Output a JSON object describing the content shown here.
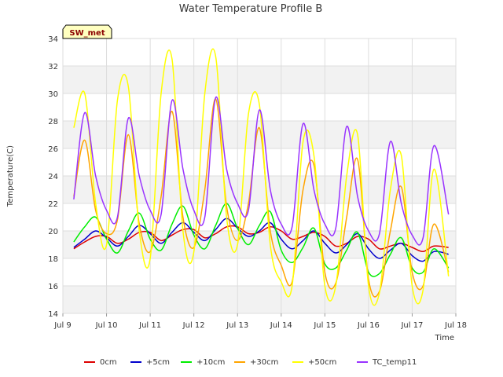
{
  "chart_data": {
    "type": "line",
    "title": "Water Temperature Profile B",
    "xlabel": "Time",
    "ylabel": "Temperature(C)",
    "badge": "SW_met",
    "ylim": [
      14,
      34
    ],
    "yticks": [
      14,
      16,
      18,
      20,
      22,
      24,
      26,
      28,
      30,
      32,
      34
    ],
    "xlim": [
      "2024-07-09",
      "2024-07-18"
    ],
    "xticks": [
      "Jul 9",
      "Jul 10",
      "Jul 11",
      "Jul 12",
      "Jul 13",
      "Jul 14",
      "Jul 15",
      "Jul 16",
      "Jul 17",
      "Jul 18"
    ],
    "grid": true,
    "legend_position": "bottom",
    "series": [
      {
        "name": "0cm",
        "color": "#dd0000",
        "x": [
          "2024-07-09 06:00",
          "2024-07-09 12:00",
          "2024-07-09 18:00",
          "2024-07-10 00:00",
          "2024-07-10 06:00",
          "2024-07-10 12:00",
          "2024-07-10 18:00",
          "2024-07-11 00:00",
          "2024-07-11 06:00",
          "2024-07-11 12:00",
          "2024-07-11 18:00",
          "2024-07-12 00:00",
          "2024-07-12 06:00",
          "2024-07-12 12:00",
          "2024-07-12 18:00",
          "2024-07-13 00:00",
          "2024-07-13 06:00",
          "2024-07-13 12:00",
          "2024-07-13 18:00",
          "2024-07-14 00:00",
          "2024-07-14 06:00",
          "2024-07-14 12:00",
          "2024-07-14 18:00",
          "2024-07-15 00:00",
          "2024-07-15 06:00",
          "2024-07-15 12:00",
          "2024-07-15 18:00",
          "2024-07-16 00:00",
          "2024-07-16 06:00",
          "2024-07-16 12:00",
          "2024-07-16 18:00",
          "2024-07-17 00:00",
          "2024-07-17 06:00",
          "2024-07-17 12:00",
          "2024-07-17 20:00"
        ],
        "y": [
          18.7,
          19.2,
          19.6,
          19.6,
          19.1,
          19.4,
          19.9,
          19.9,
          19.3,
          19.7,
          20.1,
          20.1,
          19.5,
          19.8,
          20.3,
          20.3,
          19.8,
          19.9,
          20.3,
          20.0,
          19.4,
          19.6,
          19.9,
          19.6,
          18.9,
          19.1,
          19.6,
          19.4,
          18.7,
          18.9,
          19.1,
          18.8,
          18.5,
          18.9,
          18.8
        ]
      },
      {
        "name": "+5cm",
        "color": "#0000cc",
        "x": [
          "2024-07-09 06:00",
          "2024-07-09 12:00",
          "2024-07-09 18:00",
          "2024-07-10 00:00",
          "2024-07-10 06:00",
          "2024-07-10 12:00",
          "2024-07-10 18:00",
          "2024-07-11 00:00",
          "2024-07-11 06:00",
          "2024-07-11 12:00",
          "2024-07-11 18:00",
          "2024-07-12 00:00",
          "2024-07-12 06:00",
          "2024-07-12 12:00",
          "2024-07-12 18:00",
          "2024-07-13 00:00",
          "2024-07-13 06:00",
          "2024-07-13 12:00",
          "2024-07-13 18:00",
          "2024-07-14 00:00",
          "2024-07-14 06:00",
          "2024-07-14 12:00",
          "2024-07-14 18:00",
          "2024-07-15 00:00",
          "2024-07-15 06:00",
          "2024-07-15 12:00",
          "2024-07-15 18:00",
          "2024-07-16 00:00",
          "2024-07-16 06:00",
          "2024-07-16 12:00",
          "2024-07-16 18:00",
          "2024-07-17 00:00",
          "2024-07-17 06:00",
          "2024-07-17 12:00",
          "2024-07-17 20:00"
        ],
        "y": [
          18.8,
          19.4,
          20.0,
          19.5,
          18.9,
          19.6,
          20.4,
          19.8,
          19.1,
          19.9,
          20.6,
          19.9,
          19.3,
          20.1,
          20.9,
          20.2,
          19.6,
          20.0,
          20.6,
          19.4,
          18.7,
          19.3,
          20.0,
          19.1,
          18.4,
          19.0,
          19.8,
          18.7,
          18.0,
          18.6,
          19.1,
          18.2,
          17.8,
          18.5,
          18.3
        ]
      },
      {
        "name": "+10cm",
        "color": "#00ee00",
        "x": [
          "2024-07-09 06:00",
          "2024-07-09 12:00",
          "2024-07-09 18:00",
          "2024-07-10 00:00",
          "2024-07-10 06:00",
          "2024-07-10 12:00",
          "2024-07-10 18:00",
          "2024-07-11 00:00",
          "2024-07-11 06:00",
          "2024-07-11 12:00",
          "2024-07-11 18:00",
          "2024-07-12 00:00",
          "2024-07-12 06:00",
          "2024-07-12 12:00",
          "2024-07-12 18:00",
          "2024-07-13 00:00",
          "2024-07-13 06:00",
          "2024-07-13 12:00",
          "2024-07-13 18:00",
          "2024-07-14 00:00",
          "2024-07-14 06:00",
          "2024-07-14 12:00",
          "2024-07-14 18:00",
          "2024-07-15 00:00",
          "2024-07-15 06:00",
          "2024-07-15 12:00",
          "2024-07-15 18:00",
          "2024-07-16 00:00",
          "2024-07-16 06:00",
          "2024-07-16 12:00",
          "2024-07-16 18:00",
          "2024-07-17 00:00",
          "2024-07-17 06:00",
          "2024-07-17 12:00",
          "2024-07-17 20:00"
        ],
        "y": [
          19.2,
          20.3,
          21.0,
          19.4,
          18.4,
          20.0,
          21.3,
          19.4,
          18.6,
          20.5,
          21.8,
          19.7,
          18.7,
          20.4,
          22.0,
          20.2,
          19.0,
          20.4,
          21.4,
          18.6,
          17.7,
          18.8,
          20.2,
          17.6,
          17.3,
          18.6,
          19.9,
          17.0,
          16.9,
          18.3,
          19.5,
          17.3,
          17.0,
          18.7,
          17.3
        ]
      },
      {
        "name": "+30cm",
        "color": "#ffa500",
        "x": [
          "2024-07-09 06:00",
          "2024-07-09 12:00",
          "2024-07-09 18:00",
          "2024-07-10 00:00",
          "2024-07-10 06:00",
          "2024-07-10 12:00",
          "2024-07-10 18:00",
          "2024-07-11 00:00",
          "2024-07-11 06:00",
          "2024-07-11 12:00",
          "2024-07-11 18:00",
          "2024-07-12 00:00",
          "2024-07-12 06:00",
          "2024-07-12 12:00",
          "2024-07-12 18:00",
          "2024-07-13 00:00",
          "2024-07-13 06:00",
          "2024-07-13 12:00",
          "2024-07-13 18:00",
          "2024-07-14 00:00",
          "2024-07-14 06:00",
          "2024-07-14 12:00",
          "2024-07-14 18:00",
          "2024-07-15 00:00",
          "2024-07-15 06:00",
          "2024-07-15 12:00",
          "2024-07-15 18:00",
          "2024-07-16 00:00",
          "2024-07-16 06:00",
          "2024-07-16 12:00",
          "2024-07-16 18:00",
          "2024-07-17 00:00",
          "2024-07-17 06:00",
          "2024-07-17 12:00",
          "2024-07-17 20:00"
        ],
        "y": [
          22.5,
          26.6,
          21.5,
          19.8,
          20.8,
          27.0,
          20.5,
          18.5,
          22.5,
          28.7,
          21.0,
          18.8,
          23.0,
          29.6,
          21.8,
          19.3,
          22.0,
          27.5,
          20.0,
          17.5,
          16.3,
          23.0,
          24.8,
          17.0,
          16.2,
          21.0,
          25.2,
          16.5,
          15.6,
          20.0,
          23.2,
          17.0,
          16.0,
          20.5,
          17.0
        ]
      },
      {
        "name": "+50cm",
        "color": "#ffff00",
        "x": [
          "2024-07-09 06:00",
          "2024-07-09 12:00",
          "2024-07-09 18:00",
          "2024-07-10 00:00",
          "2024-07-10 06:00",
          "2024-07-10 12:00",
          "2024-07-10 18:00",
          "2024-07-11 00:00",
          "2024-07-11 06:00",
          "2024-07-11 12:00",
          "2024-07-11 18:00",
          "2024-07-12 00:00",
          "2024-07-12 06:00",
          "2024-07-12 12:00",
          "2024-07-12 18:00",
          "2024-07-13 00:00",
          "2024-07-13 06:00",
          "2024-07-13 12:00",
          "2024-07-13 18:00",
          "2024-07-14 00:00",
          "2024-07-14 06:00",
          "2024-07-14 12:00",
          "2024-07-14 18:00",
          "2024-07-15 00:00",
          "2024-07-15 06:00",
          "2024-07-15 12:00",
          "2024-07-15 18:00",
          "2024-07-16 00:00",
          "2024-07-16 06:00",
          "2024-07-16 12:00",
          "2024-07-16 18:00",
          "2024-07-17 00:00",
          "2024-07-17 06:00",
          "2024-07-17 12:00",
          "2024-07-17 20:00"
        ],
        "y": [
          27.5,
          30.0,
          22.0,
          19.0,
          29.5,
          30.5,
          20.0,
          18.0,
          30.0,
          32.5,
          20.0,
          18.5,
          30.0,
          32.7,
          21.0,
          19.0,
          28.5,
          29.2,
          19.0,
          16.3,
          16.0,
          26.5,
          25.5,
          16.0,
          16.0,
          24.0,
          27.0,
          16.0,
          15.5,
          23.0,
          25.5,
          16.0,
          15.7,
          24.5,
          16.7
        ]
      },
      {
        "name": "TC_temp11",
        "color": "#9933ff",
        "x": [
          "2024-07-09 06:00",
          "2024-07-09 12:00",
          "2024-07-09 18:00",
          "2024-07-10 00:00",
          "2024-07-10 06:00",
          "2024-07-10 12:00",
          "2024-07-10 18:00",
          "2024-07-11 00:00",
          "2024-07-11 06:00",
          "2024-07-11 12:00",
          "2024-07-11 18:00",
          "2024-07-12 00:00",
          "2024-07-12 06:00",
          "2024-07-12 12:00",
          "2024-07-12 18:00",
          "2024-07-13 00:00",
          "2024-07-13 06:00",
          "2024-07-13 12:00",
          "2024-07-13 18:00",
          "2024-07-14 00:00",
          "2024-07-14 06:00",
          "2024-07-14 12:00",
          "2024-07-14 18:00",
          "2024-07-15 00:00",
          "2024-07-15 06:00",
          "2024-07-15 12:00",
          "2024-07-15 18:00",
          "2024-07-16 00:00",
          "2024-07-16 06:00",
          "2024-07-16 12:00",
          "2024-07-16 18:00",
          "2024-07-17 00:00",
          "2024-07-17 06:00",
          "2024-07-17 12:00",
          "2024-07-17 20:00"
        ],
        "y": [
          22.3,
          28.6,
          24.0,
          21.5,
          21.0,
          28.2,
          24.0,
          21.5,
          21.2,
          29.5,
          24.5,
          21.5,
          21.0,
          29.7,
          24.5,
          22.0,
          21.5,
          28.8,
          23.0,
          20.5,
          20.3,
          27.8,
          23.0,
          20.5,
          20.2,
          27.6,
          22.5,
          20.0,
          19.8,
          26.5,
          22.0,
          19.7,
          19.5,
          26.2,
          21.2
        ]
      }
    ]
  }
}
